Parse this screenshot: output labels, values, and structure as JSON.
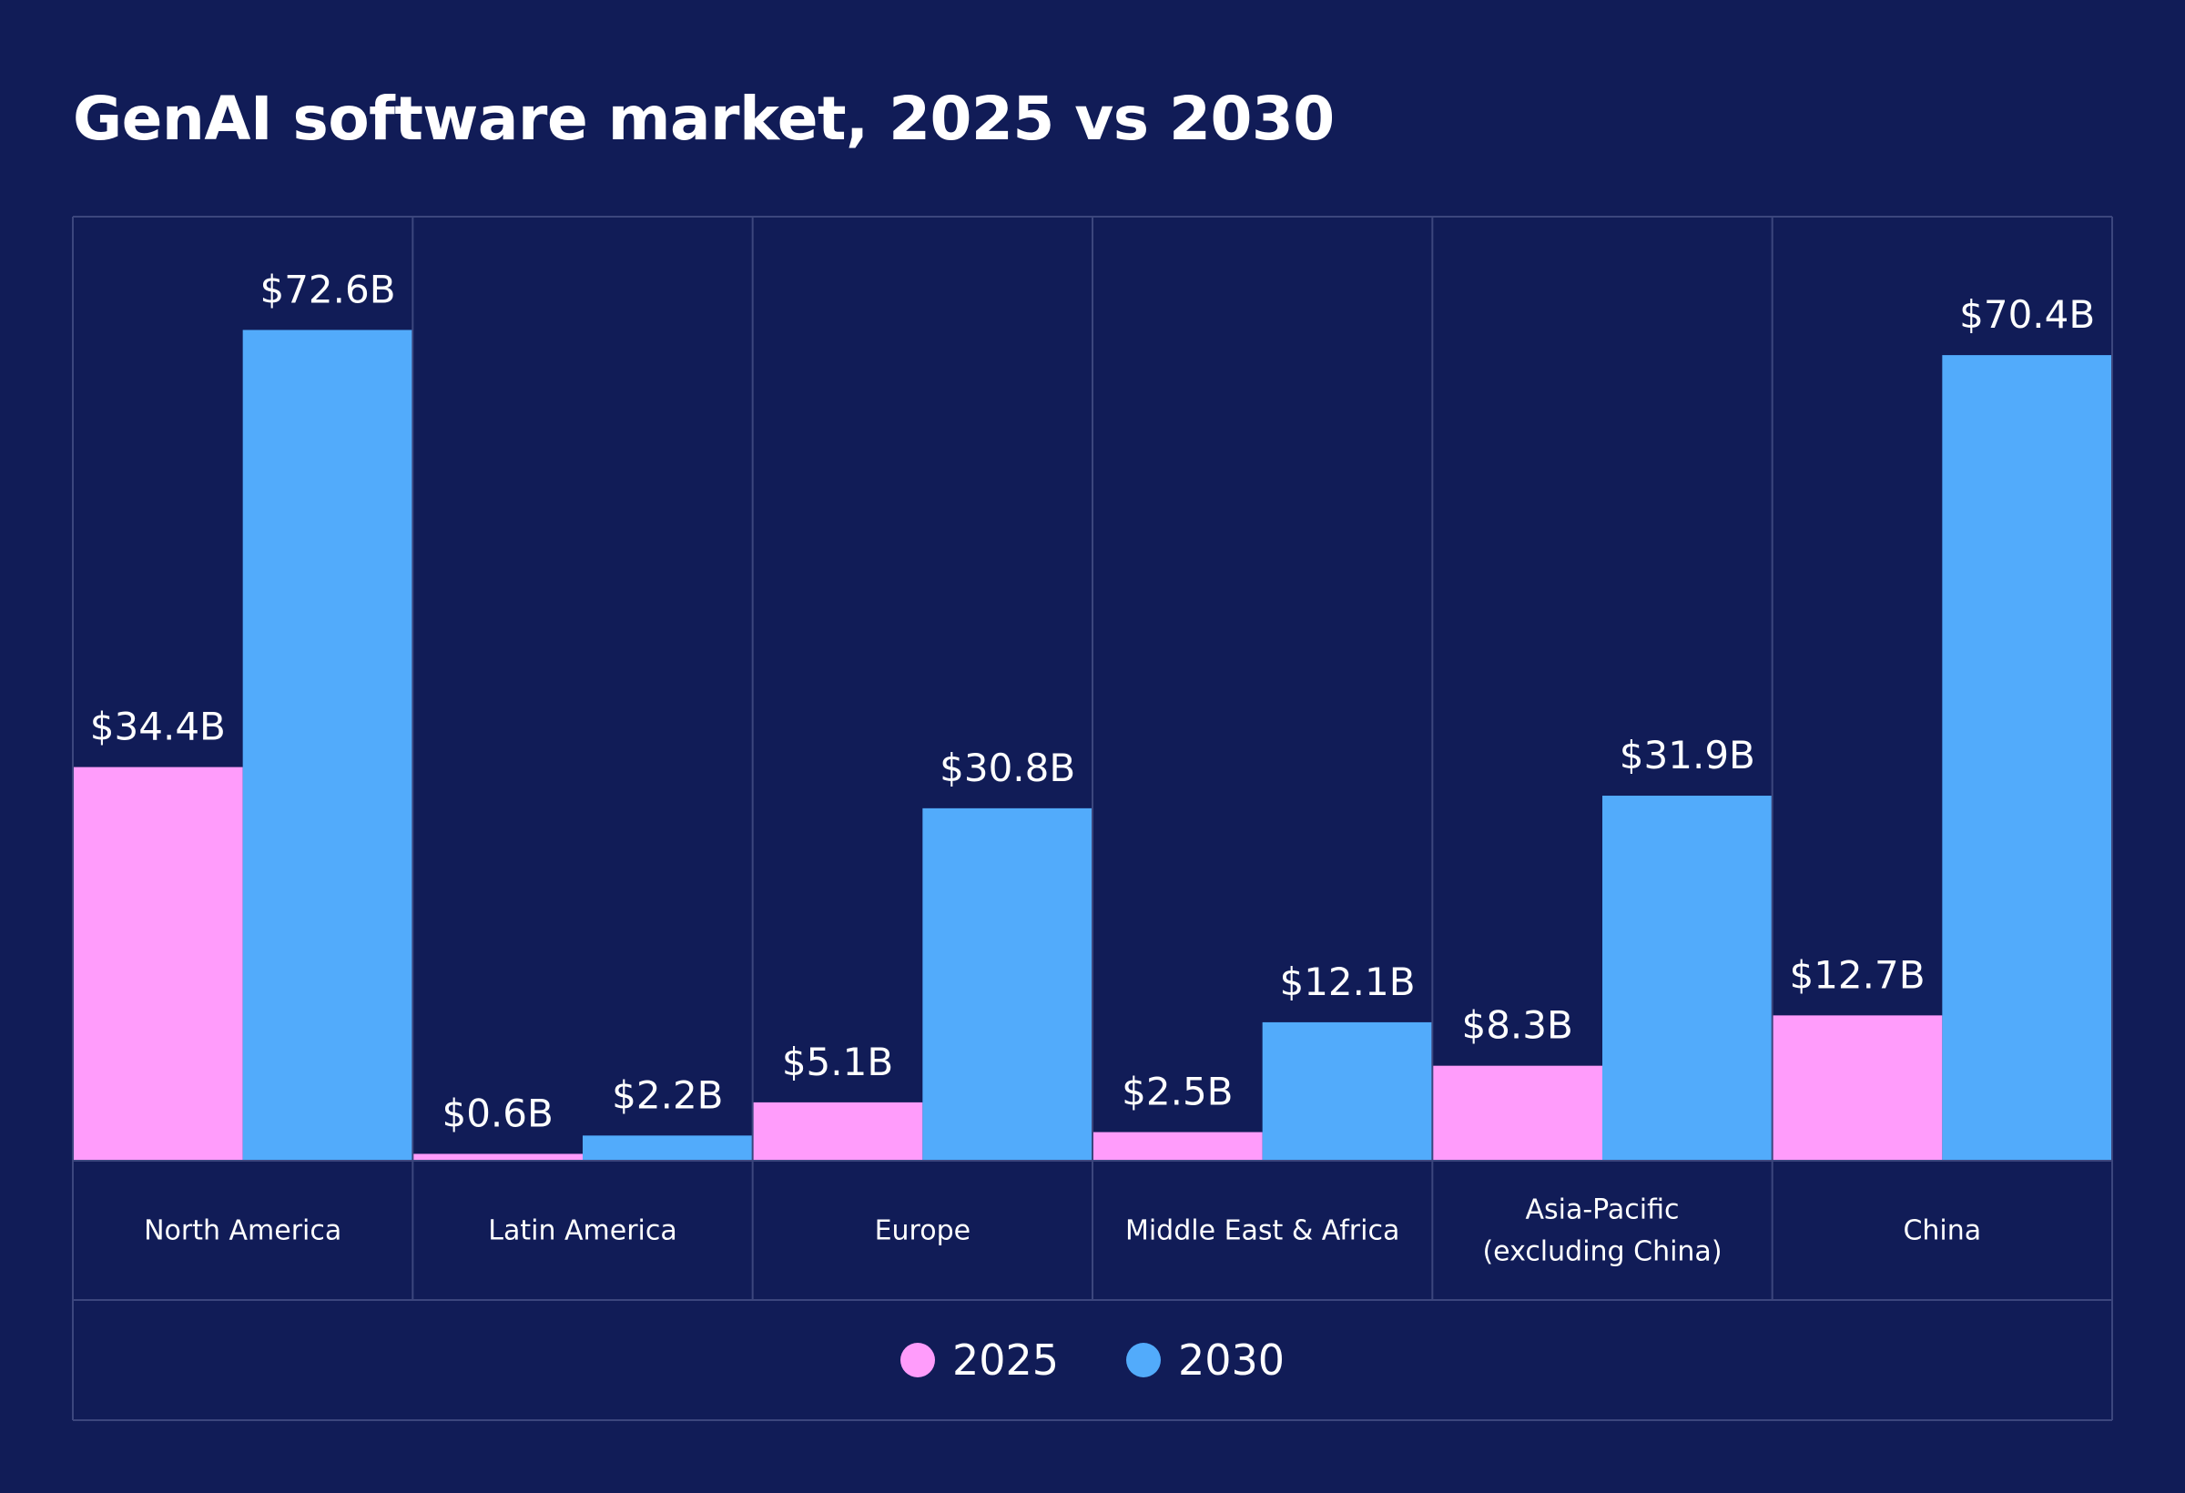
{
  "chart_data": {
    "type": "bar",
    "title": "GenAI software market, 2025 vs 2030",
    "categories": [
      [
        "North America"
      ],
      [
        "Latin America"
      ],
      [
        "Europe"
      ],
      [
        "Middle East & Africa"
      ],
      [
        "Asia-Pacific",
        "(excluding China)"
      ],
      [
        "China"
      ]
    ],
    "series": [
      {
        "name": "2025",
        "color": "#ff9cfb",
        "values": [
          34.4,
          0.6,
          5.1,
          2.5,
          8.3,
          12.7
        ],
        "labels": [
          "$34.4B",
          "$0.6B",
          "$5.1B",
          "$2.5B",
          "$8.3B",
          "$12.7B"
        ]
      },
      {
        "name": "2030",
        "color": "#52abfb",
        "values": [
          72.6,
          2.2,
          30.8,
          12.1,
          31.9,
          70.4
        ],
        "labels": [
          "$72.6B",
          "$2.2B",
          "$30.8B",
          "$12.1B",
          "$31.9B",
          "$70.4B"
        ]
      }
    ],
    "ylim": [
      0,
      82.5
    ],
    "xlabel": "",
    "ylabel": "",
    "legend": "bottom-center",
    "grid": false
  },
  "colors": {
    "background": "#111c57",
    "gridline": "#3c467d",
    "text": "#ffffff"
  }
}
